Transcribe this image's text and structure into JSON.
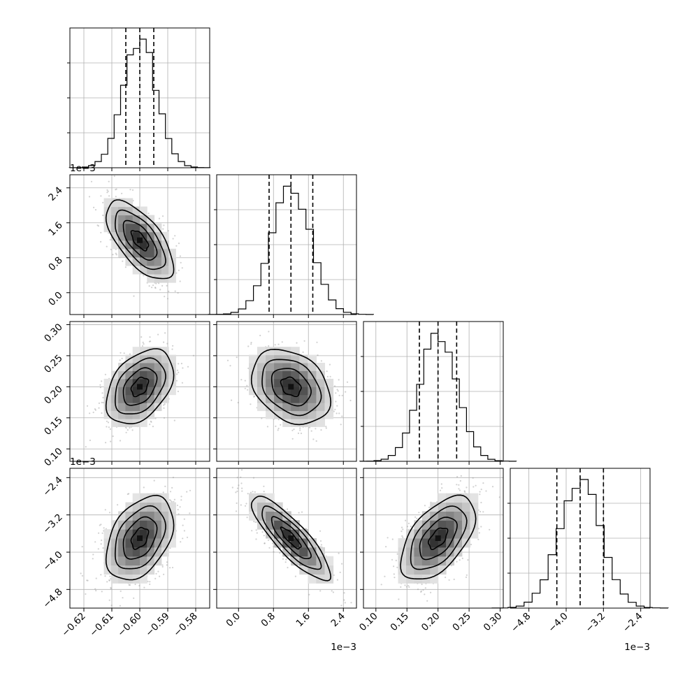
{
  "chart_data": {
    "type": "corner",
    "parameters": [
      {
        "mean": -0.6,
        "sd": 0.006,
        "range": [
          -0.625,
          -0.575
        ],
        "q": [
          -0.605,
          -0.6,
          -0.595
        ],
        "ticks": [
          -0.62,
          -0.61,
          -0.6,
          -0.59,
          -0.58
        ],
        "tick_labels": [
          "−0.62",
          "−0.61",
          "−0.60",
          "−0.59",
          "−0.58"
        ],
        "offset": ""
      },
      {
        "mean": 0.0012,
        "sd": 0.00045,
        "range": [
          -0.0005,
          0.0027
        ],
        "q": [
          0.0007,
          0.0012,
          0.0017
        ],
        "ticks": [
          0.0,
          0.0008,
          0.0016,
          0.0024
        ],
        "tick_labels": [
          "0.0",
          "0.8",
          "1.6",
          "2.4"
        ],
        "offset": "1e−3"
      },
      {
        "mean": 0.2,
        "sd": 0.03,
        "range": [
          0.08,
          0.305
        ],
        "q": [
          0.17,
          0.2,
          0.23
        ],
        "ticks": [
          0.1,
          0.15,
          0.2,
          0.25,
          0.3
        ],
        "tick_labels": [
          "0.10",
          "0.15",
          "0.20",
          "0.25",
          "0.30"
        ],
        "offset": ""
      },
      {
        "mean": -0.0037,
        "sd": 0.00045,
        "range": [
          -0.0052,
          -0.0022
        ],
        "q": [
          -0.0042,
          -0.0037,
          -0.0032
        ],
        "ticks": [
          -0.0048,
          -0.004,
          -0.0032,
          -0.0024
        ],
        "tick_labels": [
          "−4.8",
          "−4.0",
          "−3.2",
          "−2.4"
        ],
        "offset": "1e−3"
      }
    ],
    "correlations": [
      [
        1,
        -0.65,
        0.4,
        0.4
      ],
      [
        -0.65,
        1,
        -0.3,
        -0.85
      ],
      [
        0.4,
        -0.3,
        1,
        0.55
      ],
      [
        0.4,
        -0.85,
        0.55,
        1
      ]
    ],
    "quantiles": [
      0.16,
      0.5,
      0.84
    ],
    "grid": true,
    "histogram_y_ticks_visible": false
  }
}
